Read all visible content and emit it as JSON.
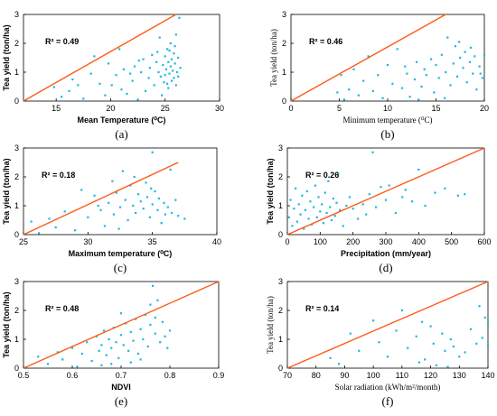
{
  "colors": {
    "points": "#1fb7e0",
    "fit_line": "#ff5a1a",
    "axes": "#000000"
  },
  "chart_data": [
    {
      "type": "scatter",
      "panel_label": "(a)",
      "xlabel": "Mean Temperature (⁰C)",
      "ylabel": "Tea yield (ton/ha)",
      "r2": "R² = 0.49",
      "xlim": [
        12,
        30
      ],
      "ylim": [
        0,
        3
      ],
      "xticks": [
        "15",
        "20",
        "25",
        "30"
      ],
      "xtick_values": [
        15,
        20,
        25,
        30
      ],
      "yticks": [
        "0",
        "1",
        "2",
        "3"
      ],
      "ytick_values": [
        0,
        1,
        2,
        3
      ],
      "fit_line": [
        [
          12,
          0
        ],
        [
          26,
          3
        ]
      ],
      "points": [
        [
          14.8,
          0.48
        ],
        [
          15.5,
          0.15
        ],
        [
          16.2,
          0.35
        ],
        [
          16.5,
          0.75
        ],
        [
          17,
          0.55
        ],
        [
          17.5,
          0.08
        ],
        [
          18.2,
          0.95
        ],
        [
          18.5,
          1.55
        ],
        [
          19,
          0.6
        ],
        [
          19.5,
          0.2
        ],
        [
          19.8,
          1.3
        ],
        [
          20.1,
          0.55
        ],
        [
          20.5,
          0.9
        ],
        [
          20.8,
          1.8
        ],
        [
          21,
          0.4
        ],
        [
          21.2,
          1.1
        ],
        [
          21.5,
          0.25
        ],
        [
          22,
          0.7
        ],
        [
          22.2,
          1.2
        ],
        [
          22.5,
          0.05
        ],
        [
          22.8,
          1.0
        ],
        [
          23,
          1.45
        ],
        [
          23.2,
          0.35
        ],
        [
          23.5,
          0.8
        ],
        [
          23.8,
          1.6
        ],
        [
          24,
          0.55
        ],
        [
          24.2,
          1.35
        ],
        [
          24.4,
          1.0
        ],
        [
          24.5,
          2.2
        ],
        [
          24.7,
          0.2
        ],
        [
          24.8,
          1.25
        ],
        [
          24.9,
          0.65
        ],
        [
          25,
          0.9
        ],
        [
          25,
          1.55
        ],
        [
          25.1,
          1.1
        ],
        [
          25.2,
          1.8
        ],
        [
          25.3,
          0.45
        ],
        [
          25.3,
          1.35
        ],
        [
          25.4,
          0.95
        ],
        [
          25.5,
          2.0
        ],
        [
          25.5,
          1.2
        ],
        [
          25.6,
          0.7
        ],
        [
          25.6,
          1.45
        ],
        [
          25.7,
          1.05
        ],
        [
          25.8,
          0.8
        ],
        [
          25.8,
          1.65
        ],
        [
          25.9,
          1.3
        ],
        [
          26,
          0.55
        ],
        [
          26,
          2.3
        ],
        [
          26.1,
          1.0
        ],
        [
          26.2,
          1.5
        ],
        [
          26.2,
          0.85
        ],
        [
          26.3,
          2.88
        ],
        [
          26.4,
          1.15
        ],
        [
          25.4,
          1.75
        ],
        [
          24.6,
          0.85
        ],
        [
          23.6,
          1.15
        ],
        [
          22.6,
          1.4
        ],
        [
          21.8,
          0.95
        ],
        [
          25.9,
          1.9
        ],
        [
          25.2,
          0.6
        ],
        [
          24.3,
          1.7
        ]
      ]
    },
    {
      "type": "scatter",
      "panel_label": "(b)",
      "xlabel": "Minimum temperature (⁰C)",
      "ylabel": "Tea yield (ton/ha)",
      "r2": "R² = 0.46",
      "xlim": [
        0,
        20
      ],
      "ylim": [
        0,
        3
      ],
      "xticks": [
        "0",
        "5",
        "10",
        "15",
        "20"
      ],
      "xtick_values": [
        0,
        5,
        10,
        15,
        20
      ],
      "yticks": [
        "0",
        "1",
        "2",
        "3"
      ],
      "ytick_values": [
        0,
        1,
        2,
        3
      ],
      "fit_line": [
        [
          0,
          0
        ],
        [
          16,
          3
        ]
      ],
      "points": [
        [
          4.8,
          0.3
        ],
        [
          5.2,
          0.9
        ],
        [
          5.5,
          0.05
        ],
        [
          6,
          0.4
        ],
        [
          6.5,
          1.1
        ],
        [
          7,
          0.2
        ],
        [
          7.5,
          0.7
        ],
        [
          8,
          1.55
        ],
        [
          8.5,
          0.35
        ],
        [
          9,
          0.9
        ],
        [
          9.5,
          0.1
        ],
        [
          10,
          1.25
        ],
        [
          10.5,
          0.6
        ],
        [
          11,
          1.8
        ],
        [
          11.5,
          0.45
        ],
        [
          12,
          0.95
        ],
        [
          12.3,
          0.15
        ],
        [
          12.8,
          0.75
        ],
        [
          13,
          1.35
        ],
        [
          13.5,
          0.5
        ],
        [
          13.8,
          1.1
        ],
        [
          14,
          0.9
        ],
        [
          14.5,
          1.45
        ],
        [
          14.8,
          0.3
        ],
        [
          15,
          1.25
        ],
        [
          15.3,
          0.8
        ],
        [
          15.6,
          1.6
        ],
        [
          16,
          1.0
        ],
        [
          16.2,
          2.2
        ],
        [
          16.5,
          0.55
        ],
        [
          16.8,
          1.3
        ],
        [
          17,
          1.9
        ],
        [
          17.2,
          0.85
        ],
        [
          17.5,
          1.5
        ],
        [
          17.8,
          1.15
        ],
        [
          18,
          1.7
        ],
        [
          18.2,
          0.65
        ],
        [
          18.5,
          1.35
        ],
        [
          18.8,
          0.95
        ],
        [
          19,
          1.55
        ],
        [
          19.2,
          0.4
        ],
        [
          19.5,
          1.2
        ],
        [
          19.8,
          0.8
        ],
        [
          20,
          1.6
        ],
        [
          17.4,
          2.05
        ],
        [
          18.6,
          1.85
        ],
        [
          15.9,
          0.1
        ],
        [
          19.6,
          0.95
        ],
        [
          11.8,
          1.2
        ],
        [
          13.2,
          0.05
        ]
      ]
    },
    {
      "type": "scatter",
      "panel_label": "(c)",
      "xlabel": "Maximum temperature (⁰C)",
      "ylabel": "Tea yield (ton/ha)",
      "r2": "R² = 0.18",
      "xlim": [
        25,
        40
      ],
      "ylim": [
        0,
        3
      ],
      "xticks": [
        "25",
        "30",
        "35",
        "40"
      ],
      "xtick_values": [
        25,
        30,
        35,
        40
      ],
      "yticks": [
        "0",
        "1",
        "2",
        "3"
      ],
      "ytick_values": [
        0,
        1,
        2,
        3
      ],
      "fit_line": [
        [
          25,
          0
        ],
        [
          37,
          2.5
        ]
      ],
      "points": [
        [
          25.6,
          0.45
        ],
        [
          26.2,
          0.05
        ],
        [
          27,
          0.55
        ],
        [
          27.5,
          0.25
        ],
        [
          28.2,
          0.8
        ],
        [
          29,
          0.15
        ],
        [
          29.5,
          1.55
        ],
        [
          30,
          0.6
        ],
        [
          30.5,
          1.35
        ],
        [
          31,
          0.85
        ],
        [
          31.3,
          0.3
        ],
        [
          31.6,
          1.1
        ],
        [
          32,
          0.7
        ],
        [
          32.2,
          1.45
        ],
        [
          32.5,
          0.95
        ],
        [
          32.7,
          2.2
        ],
        [
          32.9,
          1.2
        ],
        [
          33.1,
          0.5
        ],
        [
          33.3,
          1.7
        ],
        [
          33.5,
          1.0
        ],
        [
          33.7,
          0.75
        ],
        [
          33.9,
          1.4
        ],
        [
          34.1,
          1.15
        ],
        [
          34.3,
          0.9
        ],
        [
          34.5,
          1.8
        ],
        [
          34.6,
          1.3
        ],
        [
          34.8,
          0.6
        ],
        [
          35,
          1.05
        ],
        [
          35,
          2.85
        ],
        [
          35.2,
          1.5
        ],
        [
          35.4,
          0.85
        ],
        [
          35.5,
          1.25
        ],
        [
          35.7,
          0.4
        ],
        [
          35.9,
          1.1
        ],
        [
          36,
          0.7
        ],
        [
          36.2,
          0.95
        ],
        [
          36.4,
          2.25
        ],
        [
          36.5,
          0.75
        ],
        [
          36.8,
          1.2
        ],
        [
          37,
          0.65
        ],
        [
          37.5,
          0.55
        ],
        [
          33.6,
          2.0
        ],
        [
          34.9,
          1.6
        ],
        [
          32.4,
          0.2
        ],
        [
          31.9,
          1.85
        ],
        [
          30.8,
          1.0
        ]
      ]
    },
    {
      "type": "scatter",
      "panel_label": "(d)",
      "xlabel": "Precipitation (mm/year)",
      "ylabel": "Tea yield (ton/ha)",
      "r2": "R² = 0.26",
      "xlim": [
        0,
        600
      ],
      "ylim": [
        0,
        3
      ],
      "xticks": [
        "0",
        "100",
        "200",
        "300",
        "400",
        "500",
        "600"
      ],
      "xtick_values": [
        0,
        100,
        200,
        300,
        400,
        500,
        600
      ],
      "yticks": [
        "0",
        "1",
        "2",
        "3"
      ],
      "ytick_values": [
        0,
        1,
        2,
        3
      ],
      "fit_line": [
        [
          0,
          0
        ],
        [
          600,
          3
        ]
      ],
      "points": [
        [
          5,
          0.6
        ],
        [
          10,
          1.2
        ],
        [
          15,
          0.3
        ],
        [
          20,
          0.9
        ],
        [
          25,
          1.6
        ],
        [
          30,
          0.45
        ],
        [
          35,
          1.05
        ],
        [
          40,
          0.7
        ],
        [
          45,
          1.35
        ],
        [
          50,
          0.2
        ],
        [
          55,
          0.85
        ],
        [
          60,
          1.5
        ],
        [
          65,
          0.55
        ],
        [
          70,
          1.15
        ],
        [
          75,
          0.35
        ],
        [
          80,
          0.95
        ],
        [
          85,
          1.7
        ],
        [
          90,
          0.6
        ],
        [
          95,
          1.3
        ],
        [
          100,
          0.8
        ],
        [
          105,
          1.05
        ],
        [
          110,
          0.4
        ],
        [
          115,
          1.45
        ],
        [
          120,
          0.75
        ],
        [
          125,
          1.85
        ],
        [
          130,
          0.95
        ],
        [
          135,
          0.5
        ],
        [
          140,
          1.25
        ],
        [
          145,
          0.65
        ],
        [
          150,
          1.1
        ],
        [
          155,
          2.1
        ],
        [
          160,
          0.85
        ],
        [
          170,
          0.3
        ],
        [
          180,
          1.0
        ],
        [
          200,
          0.9
        ],
        [
          215,
          0.55
        ],
        [
          230,
          1.05
        ],
        [
          250,
          1.4
        ],
        [
          260,
          2.85
        ],
        [
          270,
          0.95
        ],
        [
          285,
          1.65
        ],
        [
          300,
          1.2
        ],
        [
          310,
          1.7
        ],
        [
          330,
          0.75
        ],
        [
          350,
          1.3
        ],
        [
          380,
          1.15
        ],
        [
          400,
          2.25
        ],
        [
          420,
          1.0
        ],
        [
          450,
          1.45
        ],
        [
          480,
          1.6
        ],
        [
          520,
          1.35
        ],
        [
          540,
          1.4
        ],
        [
          360,
          1.55
        ],
        [
          240,
          0.7
        ],
        [
          190,
          1.3
        ]
      ]
    },
    {
      "type": "scatter",
      "panel_label": "(e)",
      "xlabel": "NDVI",
      "ylabel": "Tea yield (ton/ha)",
      "r2": "R² = 0.48",
      "xlim": [
        0.5,
        0.9
      ],
      "ylim": [
        0,
        3
      ],
      "xticks": [
        "0.5",
        "0.6",
        "0.7",
        "0.8",
        "0.9"
      ],
      "xtick_values": [
        0.5,
        0.6,
        0.7,
        0.8,
        0.9
      ],
      "yticks": [
        "0",
        "1",
        "2",
        "3"
      ],
      "ytick_values": [
        0,
        1,
        2,
        3
      ],
      "fit_line": [
        [
          0.5,
          0
        ],
        [
          0.9,
          3
        ]
      ],
      "points": [
        [
          0.53,
          0.4
        ],
        [
          0.55,
          0.15
        ],
        [
          0.57,
          0.55
        ],
        [
          0.58,
          0.3
        ],
        [
          0.6,
          0.7
        ],
        [
          0.61,
          0.05
        ],
        [
          0.62,
          0.5
        ],
        [
          0.63,
          0.9
        ],
        [
          0.64,
          0.25
        ],
        [
          0.65,
          1.1
        ],
        [
          0.655,
          0.6
        ],
        [
          0.66,
          0.8
        ],
        [
          0.665,
          1.3
        ],
        [
          0.67,
          0.45
        ],
        [
          0.675,
          1.0
        ],
        [
          0.68,
          0.7
        ],
        [
          0.685,
          1.4
        ],
        [
          0.69,
          0.9
        ],
        [
          0.695,
          0.35
        ],
        [
          0.7,
          1.15
        ],
        [
          0.705,
          0.8
        ],
        [
          0.71,
          1.55
        ],
        [
          0.715,
          0.6
        ],
        [
          0.72,
          1.25
        ],
        [
          0.725,
          0.95
        ],
        [
          0.73,
          1.7
        ],
        [
          0.735,
          0.5
        ],
        [
          0.74,
          1.35
        ],
        [
          0.745,
          1.0
        ],
        [
          0.75,
          1.85
        ],
        [
          0.755,
          0.75
        ],
        [
          0.76,
          1.5
        ],
        [
          0.765,
          2.85
        ],
        [
          0.77,
          1.2
        ],
        [
          0.775,
          2.35
        ],
        [
          0.78,
          0.9
        ],
        [
          0.785,
          1.6
        ],
        [
          0.79,
          1.1
        ],
        [
          0.795,
          0.7
        ],
        [
          0.8,
          1.3
        ],
        [
          0.77,
          1.75
        ],
        [
          0.76,
          2.2
        ],
        [
          0.74,
          0.3
        ],
        [
          0.72,
          0.2
        ],
        [
          0.7,
          1.9
        ],
        [
          0.68,
          0.15
        ],
        [
          0.66,
          0.1
        ]
      ]
    },
    {
      "type": "scatter",
      "panel_label": "(f)",
      "xlabel": "Solar radiation (kWh/m²/month)",
      "ylabel": "Tea yield (ton/ha)",
      "r2": "R² = 0.14",
      "xlim": [
        70,
        140
      ],
      "ylim": [
        0,
        3
      ],
      "xticks": [
        "70",
        "80",
        "90",
        "100",
        "110",
        "120",
        "130",
        "140"
      ],
      "xtick_values": [
        70,
        80,
        90,
        100,
        110,
        120,
        130,
        140
      ],
      "yticks": [
        "0",
        "1",
        "2",
        "3"
      ],
      "ytick_values": [
        0,
        1,
        2,
        3
      ],
      "fit_line": [
        [
          70,
          0
        ],
        [
          140,
          3
        ]
      ],
      "points": [
        [
          85,
          0.35
        ],
        [
          88,
          0.15
        ],
        [
          92,
          1.2
        ],
        [
          95,
          0.6
        ],
        [
          100,
          1.65
        ],
        [
          102,
          0.9
        ],
        [
          105,
          0.4
        ],
        [
          108,
          1.3
        ],
        [
          110,
          2.0
        ],
        [
          112,
          0.7
        ],
        [
          115,
          1.1
        ],
        [
          117,
          1.6
        ],
        [
          118,
          0.3
        ],
        [
          120,
          1.45
        ],
        [
          121,
          0.85
        ],
        [
          122,
          0.1
        ],
        [
          124,
          1.2
        ],
        [
          125,
          0.6
        ],
        [
          127,
          1.0
        ],
        [
          128,
          0.75
        ],
        [
          130,
          0.4
        ],
        [
          132,
          0.55
        ],
        [
          134,
          1.35
        ],
        [
          136,
          0.85
        ],
        [
          137,
          2.15
        ],
        [
          138,
          1.05
        ],
        [
          139,
          1.75
        ],
        [
          140,
          0.8
        ],
        [
          140,
          1.5
        ],
        [
          126,
          0.05
        ],
        [
          116,
          0.2
        ]
      ]
    }
  ]
}
